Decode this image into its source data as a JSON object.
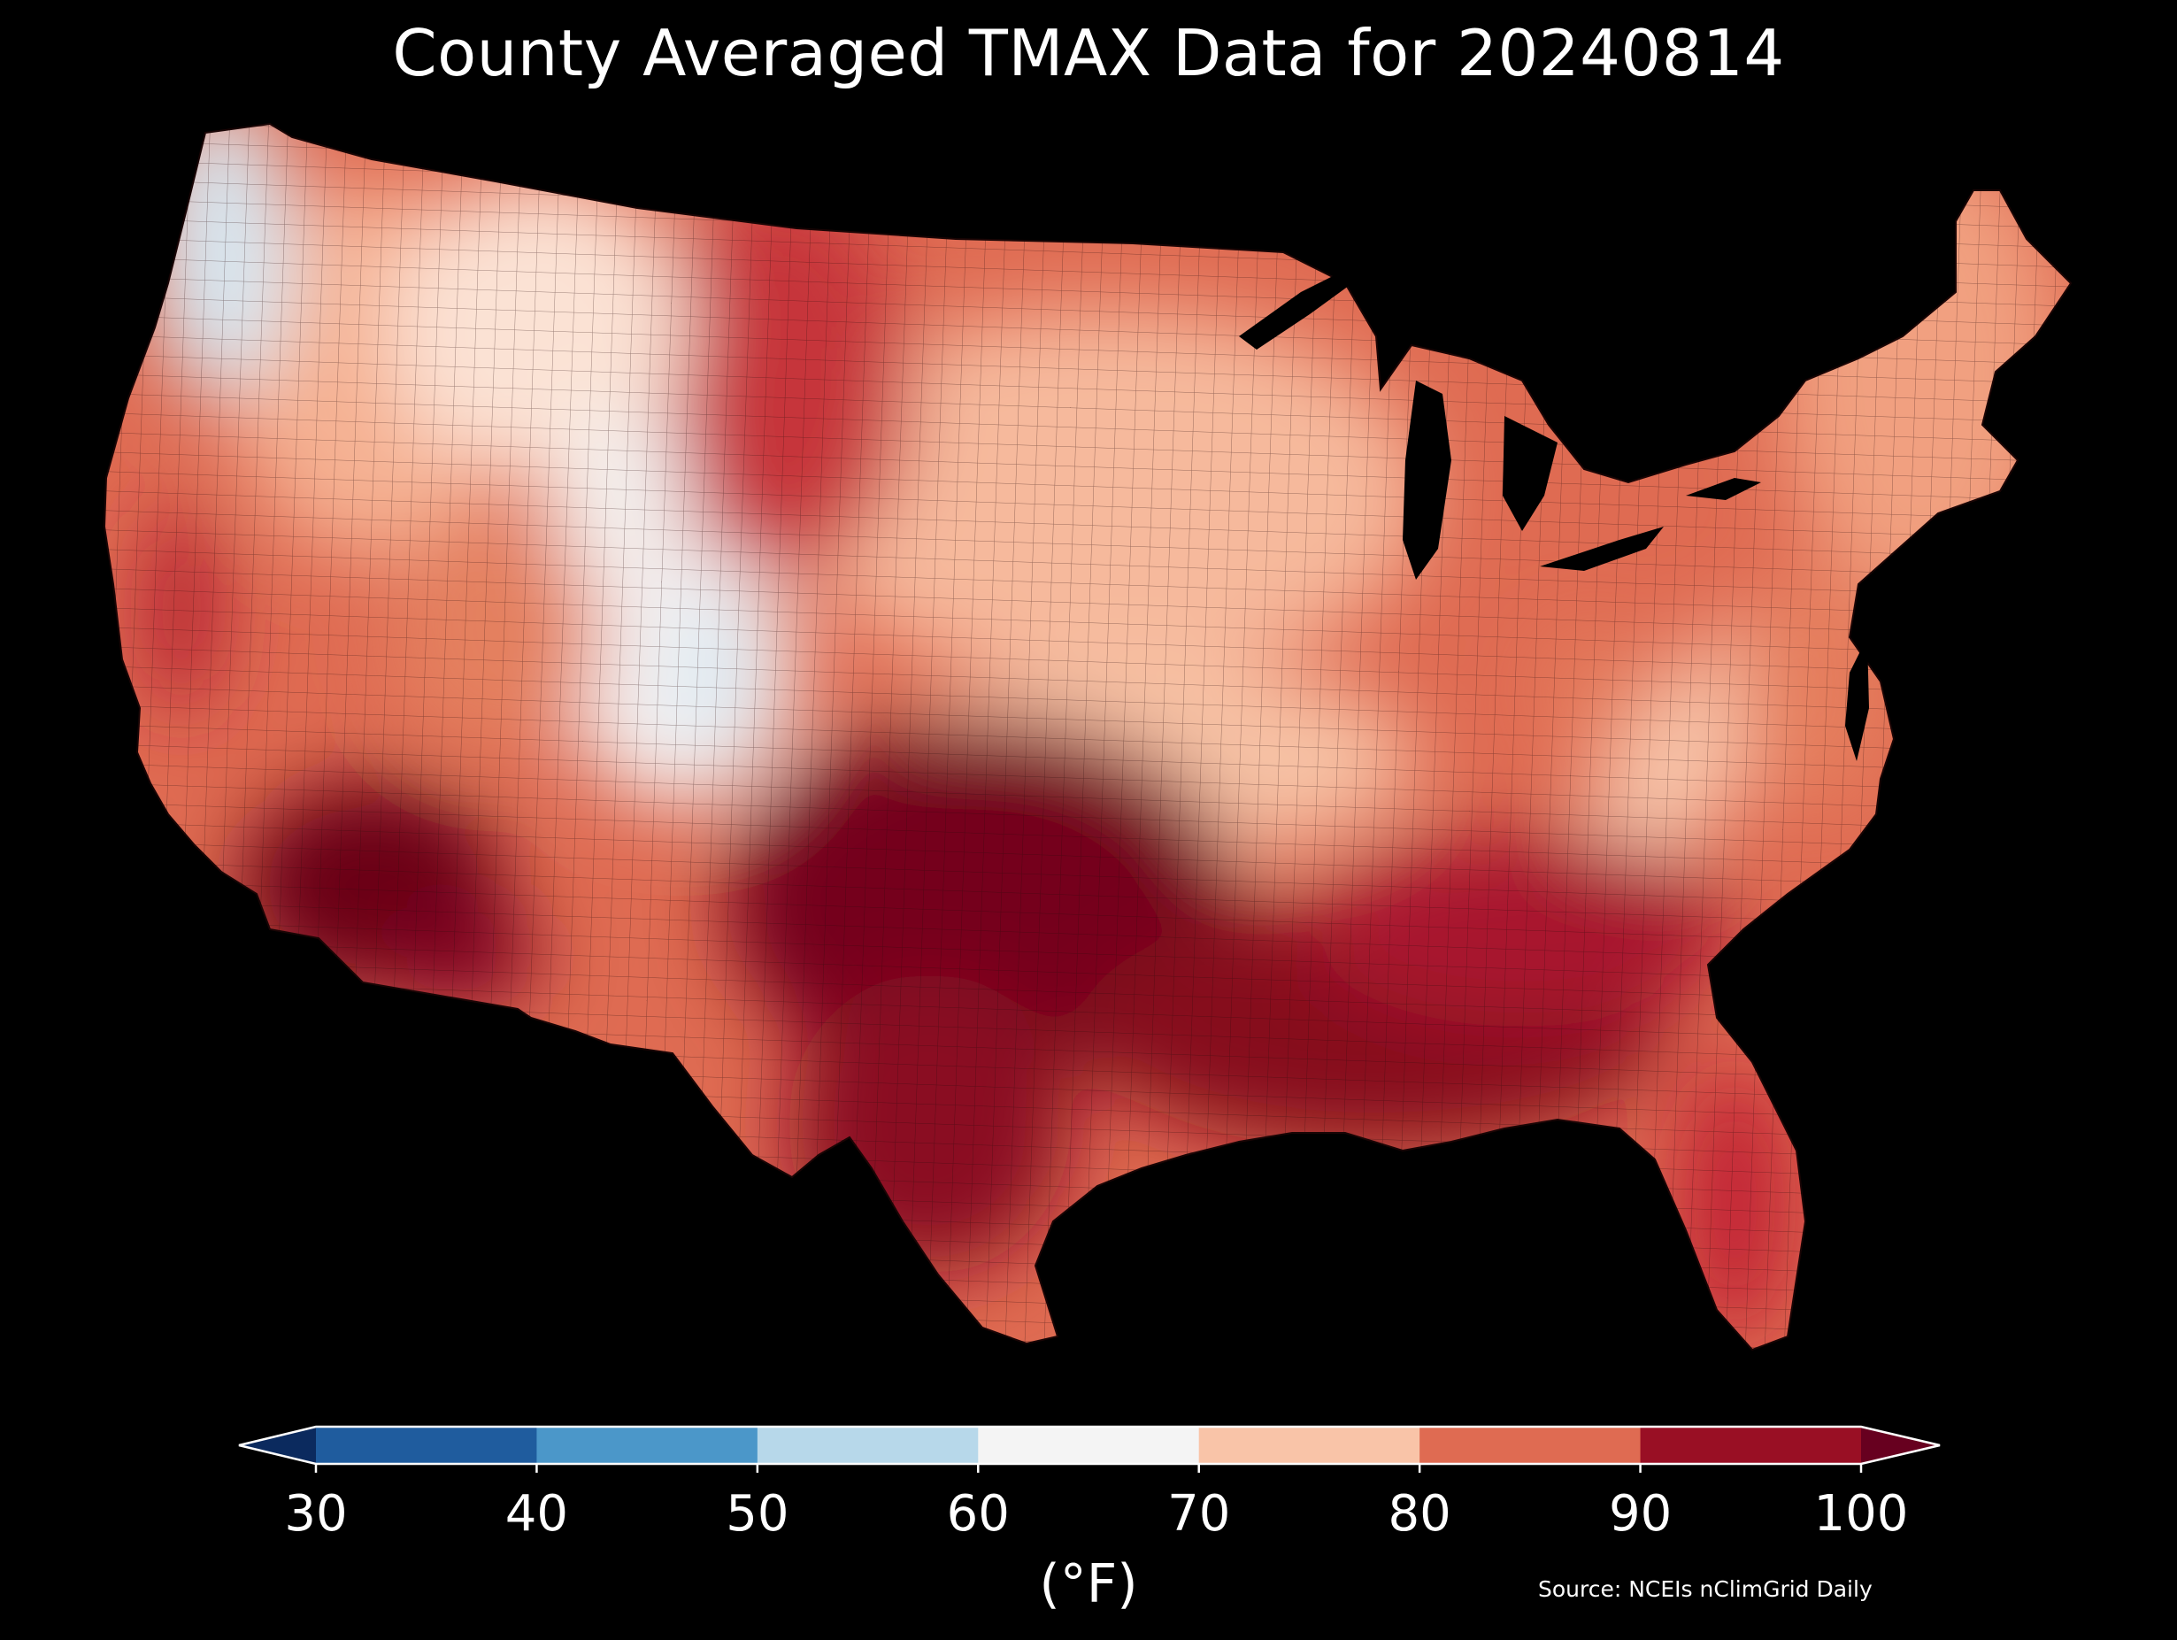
{
  "title": "County Averaged TMAX Data for 20240814",
  "source": "Source: NCEIs nClimGrid Daily",
  "map": {
    "region": "Contiguous United States",
    "subject": "County averaged daily maximum temperature",
    "date": "20240814"
  },
  "colorbar": {
    "label": "(°F)",
    "ticks": [
      "30",
      "40",
      "50",
      "60",
      "70",
      "80",
      "90",
      "100"
    ],
    "min": 30,
    "max": 100,
    "extend": "both",
    "colors": {
      "under": "#0b2a5e",
      "bins": [
        "#1f5c9e",
        "#4b97c9",
        "#b7d8ea",
        "#f4f4f4",
        "#f9c4a8",
        "#df6b52",
        "#990f24"
      ],
      "over": "#67001f"
    }
  },
  "regions": [
    {
      "name": "Pacific Northwest coast",
      "value": 62
    },
    {
      "name": "Interior Northwest",
      "value": 76
    },
    {
      "name": "Northern Rockies",
      "value": 66
    },
    {
      "name": "Northern Plains",
      "value": 85
    },
    {
      "name": "Upper Midwest",
      "value": 77
    },
    {
      "name": "Central Rockies",
      "value": 62
    },
    {
      "name": "California Central Valley",
      "value": 92
    },
    {
      "name": "Desert Southwest",
      "value": 102
    },
    {
      "name": "Southern Plains / Texas",
      "value": 100
    },
    {
      "name": "Ohio Valley",
      "value": 81
    },
    {
      "name": "Appalachians",
      "value": 76
    },
    {
      "name": "Northeast",
      "value": 78
    },
    {
      "name": "Southeast",
      "value": 93
    },
    {
      "name": "Florida",
      "value": 91
    }
  ]
}
